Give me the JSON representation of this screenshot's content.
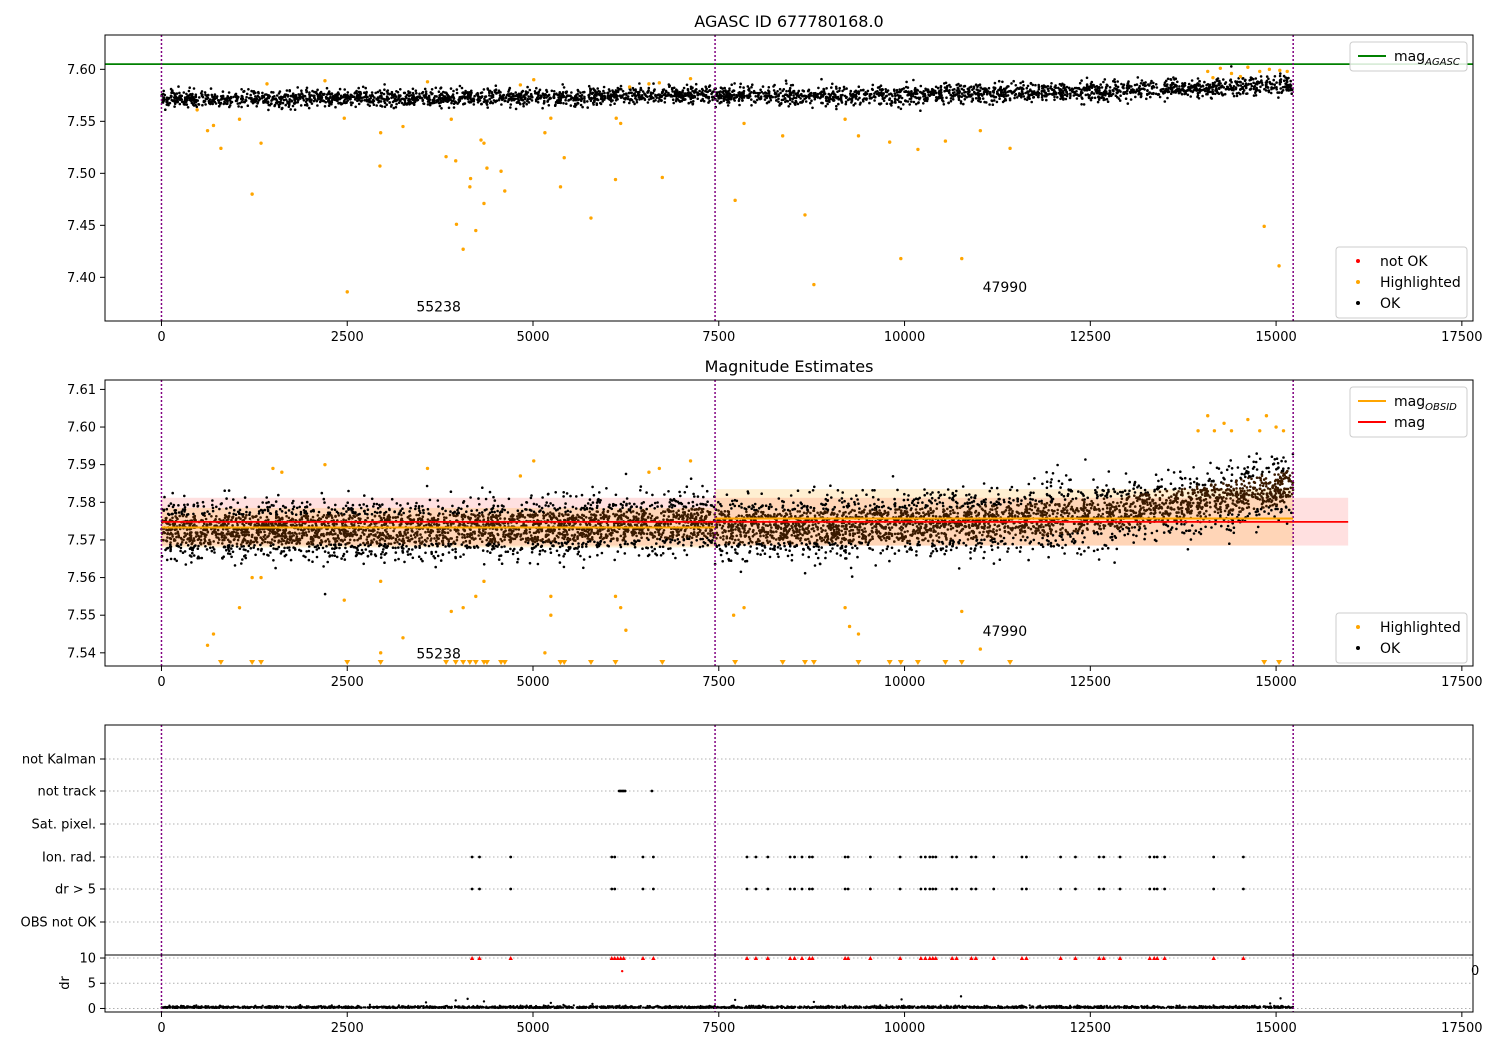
{
  "chart_data": [
    {
      "type": "scatter",
      "title": "AGASC ID 677780168.0",
      "xlim": [
        -760,
        17650
      ],
      "ylim": [
        7.358,
        7.633
      ],
      "xticks": [
        "0",
        "2500",
        "5000",
        "7500",
        "10000",
        "12500",
        "15000",
        "17500"
      ],
      "yticks": [
        "7.40",
        "7.45",
        "7.50",
        "7.55",
        "7.60"
      ],
      "obs_boundaries": [
        0,
        7450,
        15230
      ],
      "mag_agasc": 7.605,
      "annotations": [
        {
          "text": "55238",
          "x": 3430,
          "y": 7.367
        },
        {
          "text": "47990",
          "x": 11050,
          "y": 7.386
        }
      ],
      "ok_band": [
        {
          "x_start": 0,
          "x_end": 7450,
          "y_center": 7.5715,
          "spread": 0.008,
          "drift": 0.004
        },
        {
          "x_start": 7450,
          "x_end": 15230,
          "y_center": 7.574,
          "spread": 0.009,
          "drift": 0.012
        }
      ],
      "highlighted_points": [
        [
          2500,
          7.386
        ],
        [
          1220,
          7.48
        ],
        [
          3970,
          7.451
        ],
        [
          4060,
          7.427
        ],
        [
          4230,
          7.445
        ],
        [
          4340,
          7.471
        ],
        [
          4150,
          7.487
        ],
        [
          3830,
          7.516
        ],
        [
          3960,
          7.512
        ],
        [
          4160,
          7.495
        ],
        [
          4380,
          7.505
        ],
        [
          4620,
          7.483
        ],
        [
          4570,
          7.502
        ],
        [
          5420,
          7.515
        ],
        [
          5370,
          7.487
        ],
        [
          5780,
          7.457
        ],
        [
          6110,
          7.494
        ],
        [
          6740,
          7.496
        ],
        [
          2940,
          7.507
        ],
        [
          800,
          7.524
        ],
        [
          1340,
          7.529
        ],
        [
          3250,
          7.545
        ],
        [
          620,
          7.541
        ],
        [
          700,
          7.546
        ],
        [
          4300,
          7.532
        ],
        [
          4340,
          7.529
        ],
        [
          5160,
          7.539
        ],
        [
          5240,
          7.553
        ],
        [
          6120,
          7.553
        ],
        [
          6180,
          7.548
        ],
        [
          7720,
          7.474
        ],
        [
          8660,
          7.46
        ],
        [
          8780,
          7.393
        ],
        [
          9950,
          7.418
        ],
        [
          10770,
          7.418
        ],
        [
          9800,
          7.53
        ],
        [
          10180,
          7.523
        ],
        [
          10550,
          7.531
        ],
        [
          11020,
          7.541
        ],
        [
          11420,
          7.524
        ],
        [
          9200,
          7.552
        ],
        [
          9380,
          7.536
        ],
        [
          8360,
          7.536
        ],
        [
          7840,
          7.548
        ],
        [
          14840,
          7.449
        ],
        [
          15040,
          7.411
        ],
        [
          2460,
          7.553
        ],
        [
          2950,
          7.539
        ],
        [
          1050,
          7.552
        ],
        [
          3900,
          7.552
        ],
        [
          480,
          7.561
        ],
        [
          1420,
          7.586
        ],
        [
          2200,
          7.589
        ],
        [
          3580,
          7.588
        ],
        [
          5010,
          7.59
        ],
        [
          4830,
          7.585
        ],
        [
          6700,
          7.587
        ],
        [
          7120,
          7.591
        ],
        [
          6560,
          7.586
        ],
        [
          6300,
          7.583
        ],
        [
          14080,
          7.598
        ],
        [
          14250,
          7.601
        ],
        [
          14400,
          7.596
        ],
        [
          14620,
          7.602
        ],
        [
          14780,
          7.598
        ],
        [
          14910,
          7.6
        ],
        [
          15050,
          7.599
        ],
        [
          15150,
          7.598
        ],
        [
          14150,
          7.592
        ],
        [
          14520,
          7.593
        ]
      ],
      "legend_top": [
        {
          "label": "mag",
          "sub": "AGASC",
          "color": "#008000",
          "style": "line"
        }
      ],
      "legend_bottom": [
        {
          "label": "not OK",
          "color": "#ff0000",
          "style": "dot"
        },
        {
          "label": "Highlighted",
          "color": "#ffa500",
          "style": "dot"
        },
        {
          "label": "OK",
          "color": "#000000",
          "style": "dot"
        }
      ]
    },
    {
      "type": "scatter",
      "title": "Magnitude Estimates",
      "xlim": [
        -760,
        17650
      ],
      "ylim": [
        7.5365,
        7.6125
      ],
      "xticks": [
        "0",
        "2500",
        "5000",
        "7500",
        "10000",
        "12500",
        "15000",
        "17500"
      ],
      "yticks": [
        "7.54",
        "7.55",
        "7.56",
        "7.57",
        "7.58",
        "7.59",
        "7.60",
        "7.61"
      ],
      "obs_boundaries": [
        0,
        7450,
        15230
      ],
      "mag": 7.5748,
      "mag_band": [
        7.5685,
        7.5812
      ],
      "mag_band_x": [
        0,
        15970
      ],
      "mag_obsid": [
        {
          "x_start": 0,
          "x_end": 7450,
          "value": 7.5733,
          "band": [
            7.568,
            7.5785
          ]
        },
        {
          "x_start": 7450,
          "x_end": 15230,
          "value": 7.5757,
          "band": [
            7.5685,
            7.5835
          ]
        }
      ],
      "annotations": [
        {
          "text": "55238",
          "x": 3430,
          "y": 7.5385
        },
        {
          "text": "47990",
          "x": 11050,
          "y": 7.5445
        }
      ],
      "ok_band": [
        {
          "x_start": 0,
          "x_end": 7450,
          "y_center": 7.5727,
          "spread": 0.0065,
          "drift": 0.002
        },
        {
          "x_start": 7450,
          "x_end": 15230,
          "y_center": 7.5735,
          "spread": 0.0072,
          "drift": 0.011
        }
      ],
      "highlighted_points": [
        [
          620,
          7.542
        ],
        [
          700,
          7.545
        ],
        [
          1050,
          7.552
        ],
        [
          1340,
          7.56
        ],
        [
          1220,
          7.56
        ],
        [
          1500,
          7.589
        ],
        [
          1620,
          7.588
        ],
        [
          2200,
          7.59
        ],
        [
          2460,
          7.554
        ],
        [
          2950,
          7.54
        ],
        [
          2950,
          7.559
        ],
        [
          3250,
          7.544
        ],
        [
          3580,
          7.589
        ],
        [
          3900,
          7.551
        ],
        [
          4060,
          7.552
        ],
        [
          4230,
          7.555
        ],
        [
          4340,
          7.559
        ],
        [
          4830,
          7.587
        ],
        [
          5010,
          7.591
        ],
        [
          5160,
          7.54
        ],
        [
          5240,
          7.555
        ],
        [
          5240,
          7.55
        ],
        [
          6110,
          7.555
        ],
        [
          6180,
          7.552
        ],
        [
          6250,
          7.546
        ],
        [
          6560,
          7.588
        ],
        [
          6700,
          7.589
        ],
        [
          7120,
          7.591
        ],
        [
          7700,
          7.55
        ],
        [
          7840,
          7.552
        ],
        [
          9200,
          7.552
        ],
        [
          9260,
          7.547
        ],
        [
          9380,
          7.545
        ],
        [
          10770,
          7.551
        ],
        [
          11020,
          7.541
        ],
        [
          14080,
          7.603
        ],
        [
          14170,
          7.599
        ],
        [
          14300,
          7.601
        ],
        [
          14400,
          7.599
        ],
        [
          14620,
          7.602
        ],
        [
          14780,
          7.599
        ],
        [
          14870,
          7.603
        ],
        [
          15000,
          7.6
        ],
        [
          15100,
          7.599
        ],
        [
          13950,
          7.599
        ]
      ],
      "clipped_low_x": [
        800,
        1220,
        1340,
        2500,
        2950,
        3830,
        3960,
        4060,
        4150,
        4230,
        4340,
        4380,
        4570,
        4620,
        5370,
        5420,
        5780,
        6110,
        6740,
        7720,
        8360,
        8660,
        8780,
        9380,
        9800,
        9950,
        10180,
        10550,
        10770,
        11420,
        14840,
        15040
      ],
      "legend_top": [
        {
          "label": "mag",
          "sub": "OBSID",
          "color": "#ffa500",
          "style": "line"
        },
        {
          "label": "mag",
          "sub": "",
          "color": "#ff0000",
          "style": "line"
        }
      ],
      "legend_bottom": [
        {
          "label": "Highlighted",
          "color": "#ffa500",
          "style": "dot"
        },
        {
          "label": "OK",
          "color": "#000000",
          "style": "dot"
        }
      ]
    },
    {
      "type": "scatter",
      "title": "",
      "xlim": [
        -760,
        17650
      ],
      "xticks": [
        "0",
        "2500",
        "5000",
        "7500",
        "10000",
        "12500",
        "15000",
        "17500"
      ],
      "obs_boundaries": [
        0,
        7450,
        15230
      ],
      "flag_rows": [
        "not Kalman",
        "not track",
        "Sat. pixel.",
        "Ion. rad.",
        "dr > 5",
        "OBS not OK"
      ],
      "flag_points": {
        "not track": [
          6160,
          6180,
          6200,
          6220,
          6240,
          6600
        ],
        "Ion. rad.": [
          4180,
          4280,
          4700,
          6060,
          6100,
          6480,
          6620,
          7880,
          8000,
          8160,
          8460,
          8520,
          8620,
          8720,
          8760,
          9200,
          9240,
          9540,
          9940,
          10220,
          10280,
          10340,
          10380,
          10420,
          10640,
          10700,
          10900,
          10960,
          11200,
          11580,
          11640,
          12100,
          12300,
          12620,
          12680,
          12900,
          13300,
          13360,
          13400,
          13500,
          14160,
          14560
        ],
        "dr > 5": [
          4180,
          4280,
          4700,
          6060,
          6100,
          6480,
          6620,
          7880,
          8000,
          8160,
          8460,
          8520,
          8620,
          8720,
          8760,
          9200,
          9240,
          9540,
          9940,
          10220,
          10280,
          10340,
          10380,
          10420,
          10640,
          10700,
          10900,
          10960,
          11200,
          11580,
          11640,
          12100,
          12300,
          12620,
          12680,
          12900,
          13300,
          13360,
          13400,
          13500,
          14160,
          14560
        ]
      },
      "dr_ylabel": "dr",
      "dr_yticks": [
        "0",
        "5",
        "10"
      ],
      "dr_ylim": [
        -0.7,
        10.6
      ],
      "dr_clip_label": "0",
      "dr_clipped_x": [
        4180,
        4280,
        4700,
        6060,
        6100,
        6140,
        6180,
        6220,
        6480,
        6620,
        7880,
        8000,
        8160,
        8460,
        8520,
        8620,
        8720,
        8760,
        9200,
        9240,
        9540,
        9940,
        10220,
        10280,
        10340,
        10380,
        10420,
        10640,
        10700,
        10900,
        10960,
        11200,
        11580,
        11640,
        12100,
        12300,
        12620,
        12680,
        12900,
        13300,
        13360,
        13400,
        13500,
        14160,
        14560
      ],
      "dr_outliers": [
        [
          6200,
          7.4
        ],
        [
          3560,
          1.2
        ],
        [
          3960,
          1.6
        ],
        [
          4120,
          1.9
        ],
        [
          4340,
          1.4
        ],
        [
          5240,
          1.1
        ],
        [
          5800,
          0.9
        ],
        [
          7720,
          1.7
        ],
        [
          8780,
          1.3
        ],
        [
          9960,
          1.8
        ],
        [
          10760,
          2.4
        ],
        [
          14920,
          1.0
        ],
        [
          15060,
          2.0
        ]
      ]
    }
  ]
}
